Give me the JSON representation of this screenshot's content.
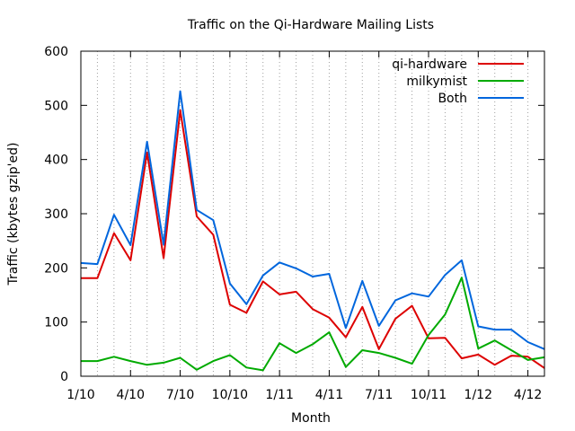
{
  "chart_data": {
    "type": "line",
    "title": "Traffic on the Qi-Hardware Mailing Lists",
    "xlabel": "Month",
    "ylabel": "Traffic (kbytes gzip'ed)",
    "ylim": [
      0,
      600
    ],
    "yticks": [
      "0",
      "100",
      "200",
      "300",
      "400",
      "500",
      "600"
    ],
    "xticks": [
      "1/10",
      "4/10",
      "7/10",
      "10/10",
      "1/11",
      "4/11",
      "7/11",
      "10/11",
      "1/12",
      "4/12"
    ],
    "x": [
      "1/10",
      "2/10",
      "3/10",
      "4/10",
      "5/10",
      "6/10",
      "7/10",
      "8/10",
      "9/10",
      "10/10",
      "11/10",
      "12/10",
      "1/11",
      "2/11",
      "3/11",
      "4/11",
      "5/11",
      "6/11",
      "7/11",
      "8/11",
      "9/11",
      "10/11",
      "11/11",
      "12/11",
      "1/12",
      "2/12",
      "3/12",
      "4/12",
      "5/12"
    ],
    "grid": "vertical dotted, monthly",
    "legend_position": "top-right",
    "series": [
      {
        "name": "qi-hardware",
        "color": "#dd0000",
        "values": [
          181,
          181,
          264,
          214,
          413,
          218,
          491,
          295,
          261,
          132,
          117,
          175,
          151,
          156,
          124,
          108,
          72,
          128,
          50,
          106,
          130,
          70,
          71,
          33,
          40,
          21,
          38,
          36,
          15
        ]
      },
      {
        "name": "milkymist",
        "color": "#00aa00",
        "values": [
          28,
          28,
          36,
          28,
          21,
          25,
          34,
          12,
          28,
          39,
          16,
          11,
          61,
          43,
          59,
          81,
          17,
          48,
          43,
          34,
          23,
          76,
          114,
          182,
          51,
          66,
          48,
          30,
          35
        ]
      },
      {
        "name": "Both",
        "color": "#0066dd",
        "values": [
          209,
          207,
          298,
          242,
          433,
          243,
          526,
          307,
          288,
          171,
          133,
          186,
          210,
          199,
          184,
          189,
          89,
          176,
          93,
          140,
          153,
          147,
          187,
          214,
          92,
          86,
          86,
          63,
          50
        ]
      }
    ]
  }
}
